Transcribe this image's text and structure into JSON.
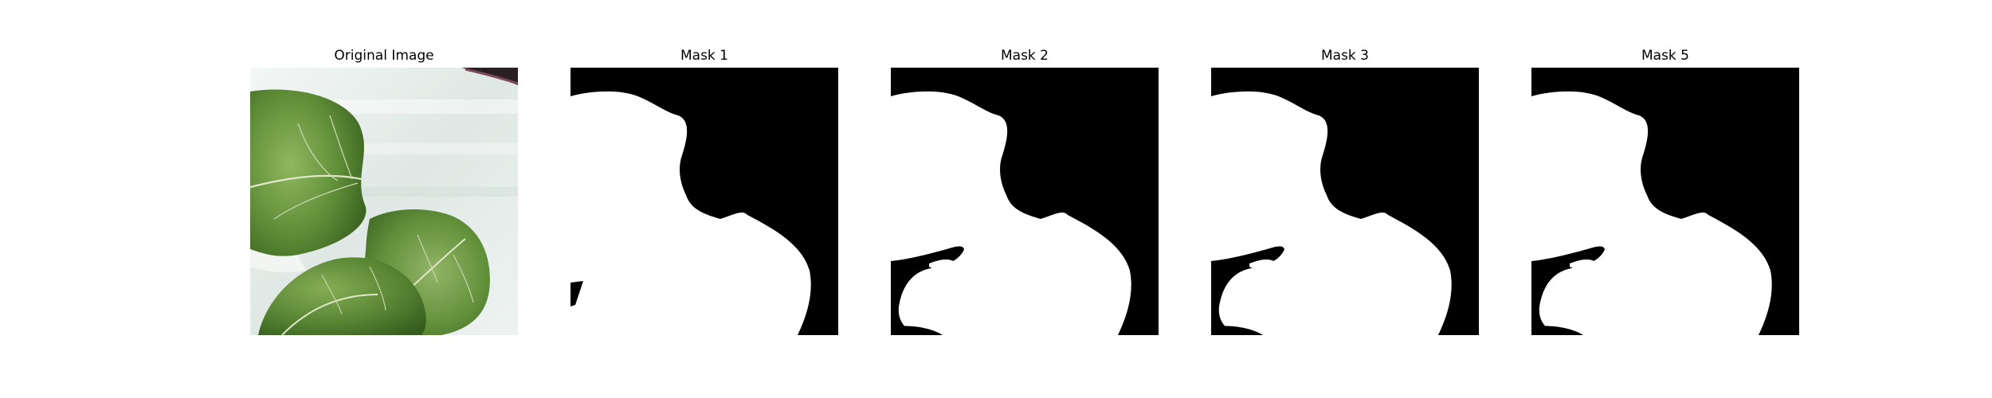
{
  "figure": {
    "panels": [
      {
        "title": "Original Image"
      },
      {
        "title": "Mask 1"
      },
      {
        "title": "Mask 2"
      },
      {
        "title": "Mask 3"
      },
      {
        "title": "Mask 5"
      }
    ]
  },
  "colors": {
    "background": "#ffffff",
    "mask_foreground": "#ffffff",
    "mask_background": "#000000",
    "leaf_dark": "#3f6b24",
    "leaf_mid": "#5d8a35",
    "leaf_light": "#8ab35a",
    "tray": "#e9f0ee"
  }
}
